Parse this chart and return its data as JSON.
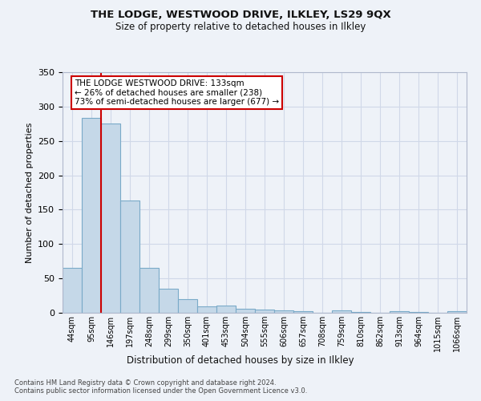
{
  "title": "THE LODGE, WESTWOOD DRIVE, ILKLEY, LS29 9QX",
  "subtitle": "Size of property relative to detached houses in Ilkley",
  "xlabel": "Distribution of detached houses by size in Ilkley",
  "ylabel": "Number of detached properties",
  "footer1": "Contains HM Land Registry data © Crown copyright and database right 2024.",
  "footer2": "Contains public sector information licensed under the Open Government Licence v3.0.",
  "categories": [
    "44sqm",
    "95sqm",
    "146sqm",
    "197sqm",
    "248sqm",
    "299sqm",
    "350sqm",
    "401sqm",
    "453sqm",
    "504sqm",
    "555sqm",
    "606sqm",
    "657sqm",
    "708sqm",
    "759sqm",
    "810sqm",
    "862sqm",
    "913sqm",
    "964sqm",
    "1015sqm",
    "1066sqm"
  ],
  "values": [
    65,
    283,
    275,
    163,
    65,
    35,
    20,
    9,
    10,
    6,
    5,
    4,
    2,
    0,
    3,
    1,
    0,
    2,
    1,
    0,
    2
  ],
  "bar_color": "#c5d8e8",
  "bar_edge_color": "#7aaac8",
  "grid_color": "#d0d8e8",
  "bg_color": "#eef2f8",
  "vline_color": "#cc0000",
  "annotation_text": "THE LODGE WESTWOOD DRIVE: 133sqm\n← 26% of detached houses are smaller (238)\n73% of semi-detached houses are larger (677) →",
  "annotation_box_color": "#ffffff",
  "annotation_box_edge": "#cc0000",
  "ylim": [
    0,
    350
  ],
  "yticks": [
    0,
    50,
    100,
    150,
    200,
    250,
    300,
    350
  ]
}
